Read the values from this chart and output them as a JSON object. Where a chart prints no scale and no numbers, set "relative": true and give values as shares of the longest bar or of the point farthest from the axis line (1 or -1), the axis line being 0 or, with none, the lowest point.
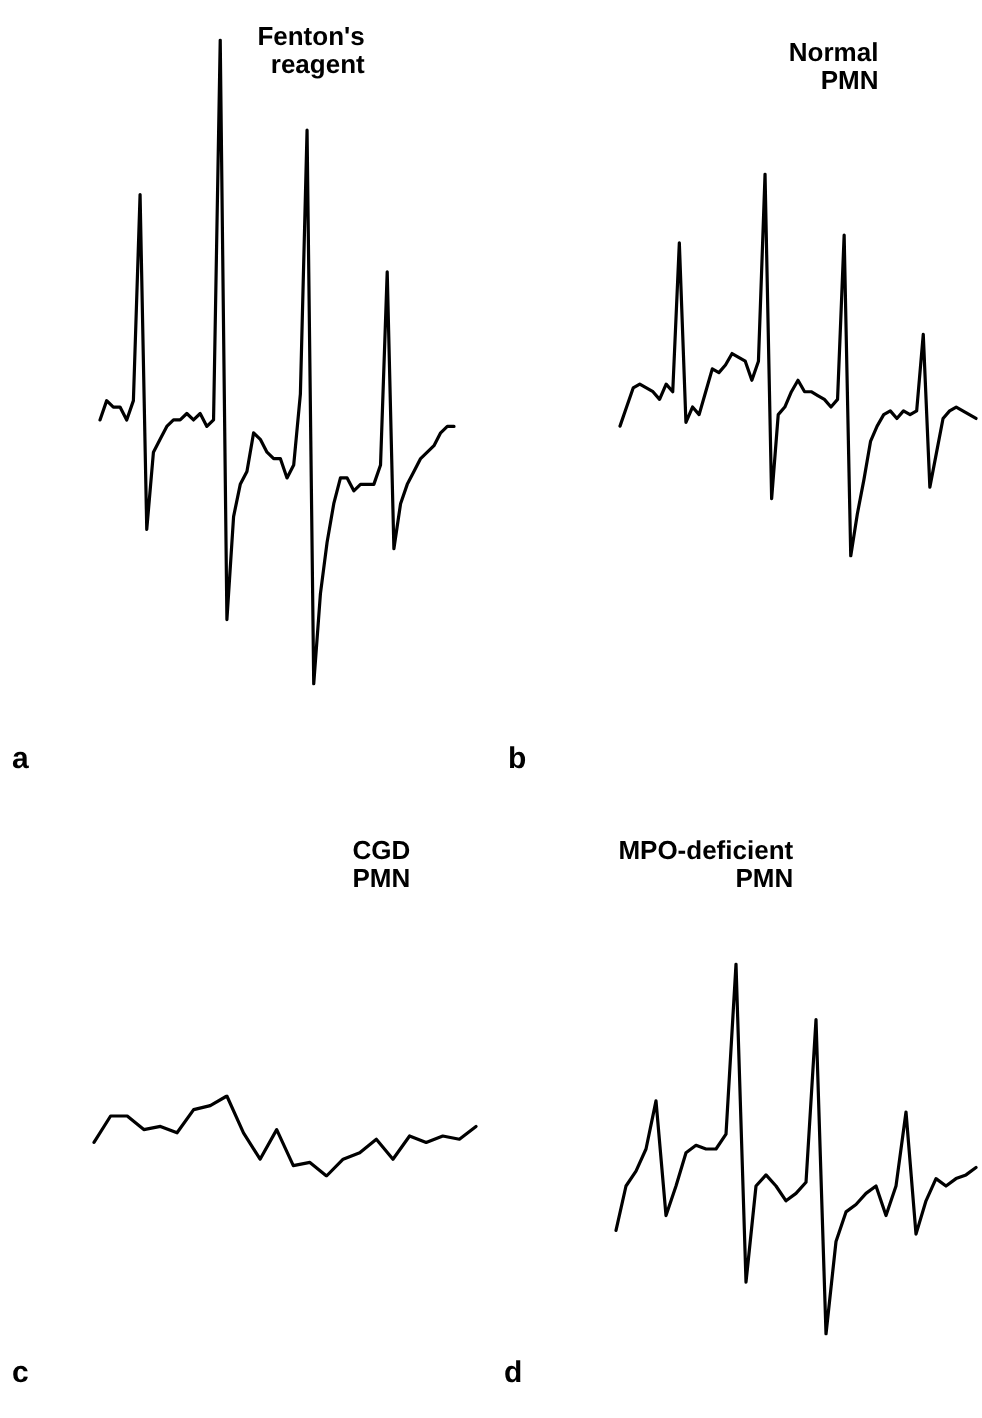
{
  "chart_data": [
    {
      "type": "line",
      "relative": true,
      "title": "Fenton's reagent",
      "annotations": [
        "a"
      ],
      "categories": [
        null,
        null,
        null,
        null,
        null,
        null,
        null,
        null,
        null,
        null,
        null,
        null,
        null,
        null,
        null,
        null,
        null,
        null,
        null,
        null,
        null,
        null,
        null,
        null,
        null,
        null,
        null,
        null,
        null,
        null,
        null,
        null,
        null,
        null,
        null,
        null,
        null,
        null,
        null,
        null,
        null,
        null,
        null,
        null,
        null,
        null,
        null,
        null,
        null,
        null,
        null,
        null,
        null,
        null
      ],
      "series": [
        {
          "color": "#000000",
          "values": [
            0.41,
            0.44,
            0.43,
            0.43,
            0.41,
            0.44,
            0.76,
            0.24,
            0.36,
            0.38,
            0.4,
            0.41,
            0.41,
            0.42,
            0.41,
            0.42,
            0.4,
            0.41,
            1,
            0.1,
            0.26,
            0.31,
            0.33,
            0.39,
            0.38,
            0.36,
            0.35,
            0.35,
            0.32,
            0.34,
            0.45,
            0.86,
            0,
            0.14,
            0.22,
            0.28,
            0.32,
            0.32,
            0.3,
            0.31,
            0.31,
            0.31,
            0.34,
            0.64,
            0.21,
            0.28,
            0.31,
            0.33,
            0.35,
            0.36,
            0.37,
            0.39,
            0.4,
            0.4
          ]
        }
      ]
    },
    {
      "type": "line",
      "relative": true,
      "title": "Normal PMN",
      "annotations": [
        "b"
      ],
      "categories": [
        null,
        null,
        null,
        null,
        null,
        null,
        null,
        null,
        null,
        null,
        null,
        null,
        null,
        null,
        null,
        null,
        null,
        null,
        null,
        null,
        null,
        null,
        null,
        null,
        null,
        null,
        null,
        null,
        null,
        null,
        null,
        null,
        null,
        null,
        null,
        null,
        null,
        null,
        null,
        null,
        null,
        null,
        null,
        null,
        null,
        null,
        null,
        null,
        null,
        null,
        null,
        null,
        null,
        null,
        null
      ],
      "series": [
        {
          "color": "#000000",
          "values": [
            0.34,
            0.39,
            0.44,
            0.45,
            0.44,
            0.43,
            0.41,
            0.45,
            0.43,
            0.82,
            0.35,
            0.39,
            0.37,
            0.43,
            0.49,
            0.48,
            0.5,
            0.53,
            0.52,
            0.51,
            0.46,
            0.51,
            1,
            0.15,
            0.37,
            0.39,
            0.43,
            0.46,
            0.43,
            0.43,
            0.42,
            0.41,
            0.39,
            0.41,
            0.84,
            0,
            0.11,
            0.2,
            0.3,
            0.34,
            0.37,
            0.38,
            0.36,
            0.38,
            0.37,
            0.38,
            0.58,
            0.18,
            0.27,
            0.36,
            0.38,
            0.39,
            0.38,
            0.37,
            0.36
          ]
        }
      ]
    },
    {
      "type": "line",
      "relative": true,
      "title": "CGD PMN",
      "annotations": [
        "c"
      ],
      "categories": [
        null,
        null,
        null,
        null,
        null,
        null,
        null,
        null,
        null,
        null,
        null,
        null,
        null,
        null,
        null,
        null,
        null,
        null,
        null,
        null,
        null,
        null,
        null,
        null
      ],
      "series": [
        {
          "color": "#000000",
          "values": [
            0.42,
            0.75,
            0.75,
            0.58,
            0.62,
            0.54,
            0.83,
            0.88,
            1,
            0.54,
            0.21,
            0.58,
            0.13,
            0.17,
            0,
            0.21,
            0.29,
            0.46,
            0.21,
            0.5,
            0.42,
            0.5,
            0.46,
            0.62
          ]
        }
      ]
    },
    {
      "type": "line",
      "relative": true,
      "title": "MPO-deficient PMN",
      "annotations": [
        "d"
      ],
      "categories": [
        null,
        null,
        null,
        null,
        null,
        null,
        null,
        null,
        null,
        null,
        null,
        null,
        null,
        null,
        null,
        null,
        null,
        null,
        null,
        null,
        null,
        null,
        null,
        null,
        null,
        null,
        null,
        null,
        null,
        null,
        null,
        null,
        null,
        null,
        null,
        null,
        null
      ],
      "series": [
        {
          "color": "#000000",
          "values": [
            0.28,
            0.4,
            0.44,
            0.5,
            0.63,
            0.32,
            0.4,
            0.49,
            0.51,
            0.5,
            0.5,
            0.54,
            1,
            0.14,
            0.4,
            0.43,
            0.4,
            0.36,
            0.38,
            0.41,
            0.85,
            0,
            0.25,
            0.33,
            0.35,
            0.38,
            0.4,
            0.32,
            0.4,
            0.6,
            0.27,
            0.36,
            0.42,
            0.4,
            0.42,
            0.43,
            0.45
          ]
        }
      ]
    }
  ]
}
